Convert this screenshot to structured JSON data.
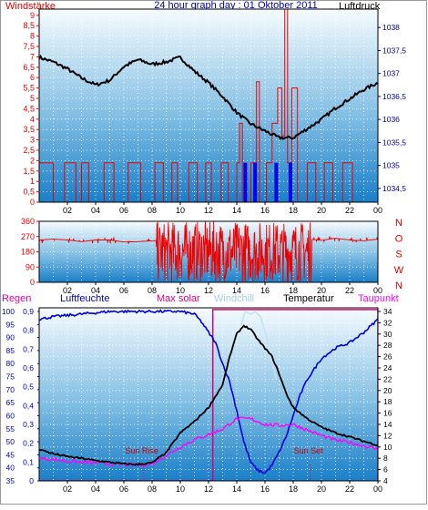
{
  "header": {
    "left": "Windstärke",
    "center": "24 hour graph day : 01 Oktober 2011",
    "right": "Luftdruck"
  },
  "panel3_header": {
    "regen": "Regen",
    "feuchte": "Luftfeuchte",
    "solar": "Max solar",
    "windchill": "Windchill",
    "temperatur": "Temperatur",
    "taupunkt": "Taupunkt"
  },
  "colors": {
    "wind": "#ee0000",
    "gust": "#0000ee",
    "pressure": "#000000",
    "humidity": "#0000dd",
    "temperature": "#000000",
    "dewpoint": "#ff00ff",
    "windchill": "#c0e4f4",
    "solar": "#dd0077",
    "axis_left": "#dd0000",
    "axis_right": "#000088",
    "grid": "#ffffff"
  },
  "chart_data": [
    {
      "type": "line",
      "name": "wind-pressure",
      "x_ticks": [
        "02",
        "04",
        "06",
        "08",
        "10",
        "12",
        "14",
        "16",
        "18",
        "20",
        "22",
        "00"
      ],
      "left_axis": {
        "label": "Windstärke",
        "ticks": [
          "0",
          "0,5",
          "1",
          "1,5",
          "2",
          "2,5",
          "3",
          "3,5",
          "4",
          "4,5",
          "5",
          "5,5",
          "6",
          "6,5",
          "7",
          "7,5",
          "8",
          "8,5",
          "9"
        ],
        "range": [
          0,
          9.3
        ]
      },
      "right_axis": {
        "label": "Luftdruck",
        "ticks": [
          "1034,5",
          "1035",
          "1035,5",
          "1036",
          "1036,5",
          "1037",
          "1037,5",
          "1038"
        ],
        "range": [
          1034.2,
          1038.4
        ]
      },
      "series": [
        {
          "name": "Windstärke",
          "points": [
            [
              0,
              1.9
            ],
            [
              1,
              0
            ],
            [
              1.8,
              1.9
            ],
            [
              2.6,
              0
            ],
            [
              3,
              1.9
            ],
            [
              3.5,
              0
            ],
            [
              4.6,
              1.9
            ],
            [
              5.3,
              0
            ],
            [
              6.3,
              1.9
            ],
            [
              7.2,
              0
            ],
            [
              8.2,
              1.9
            ],
            [
              8.8,
              0
            ],
            [
              9.4,
              1.9
            ],
            [
              9.8,
              0
            ],
            [
              10.6,
              1.9
            ],
            [
              11.2,
              0
            ],
            [
              11.8,
              1.9
            ],
            [
              12.2,
              0
            ],
            [
              12.9,
              1.9
            ],
            [
              13.4,
              0
            ],
            [
              14,
              1.9
            ],
            [
              14.2,
              3.8
            ],
            [
              14.4,
              0
            ],
            [
              15,
              1.9
            ],
            [
              15.4,
              5.8
            ],
            [
              15.6,
              0
            ],
            [
              16.1,
              1.9
            ],
            [
              16.5,
              3.8
            ],
            [
              16.9,
              5.5
            ],
            [
              17.2,
              3.2
            ],
            [
              17.4,
              9.3
            ],
            [
              17.6,
              1.9
            ],
            [
              17.9,
              5.5
            ],
            [
              18.3,
              0
            ],
            [
              19,
              1.9
            ],
            [
              19.6,
              0
            ],
            [
              20.2,
              1.9
            ],
            [
              20.8,
              0
            ],
            [
              21.5,
              1.9
            ],
            [
              22.2,
              0
            ],
            [
              23,
              0
            ],
            [
              24,
              0
            ]
          ]
        },
        {
          "name": "Windböen",
          "points": [
            [
              14.6,
              1.9
            ],
            [
              15.3,
              1.9
            ],
            [
              16.8,
              1.9
            ],
            [
              17.8,
              1.9
            ]
          ]
        },
        {
          "name": "Luftdruck",
          "points": [
            [
              0,
              1037.35
            ],
            [
              1,
              1037.25
            ],
            [
              2,
              1037.1
            ],
            [
              3,
              1036.9
            ],
            [
              4,
              1036.75
            ],
            [
              5,
              1036.85
            ],
            [
              6,
              1037.15
            ],
            [
              7,
              1037.3
            ],
            [
              8,
              1037.2
            ],
            [
              9,
              1037.25
            ],
            [
              10,
              1037.35
            ],
            [
              11,
              1037.05
            ],
            [
              12,
              1036.8
            ],
            [
              13,
              1036.5
            ],
            [
              14,
              1036.15
            ],
            [
              15,
              1035.9
            ],
            [
              16,
              1035.75
            ],
            [
              17,
              1035.6
            ],
            [
              18,
              1035.6
            ],
            [
              19,
              1035.8
            ],
            [
              20,
              1036.0
            ],
            [
              21,
              1036.25
            ],
            [
              22,
              1036.45
            ],
            [
              23,
              1036.65
            ],
            [
              24,
              1036.8
            ]
          ]
        }
      ]
    },
    {
      "type": "line",
      "name": "wind-direction",
      "x_ticks": [
        "02",
        "04",
        "06",
        "08",
        "10",
        "12",
        "14",
        "16",
        "18",
        "20",
        "22",
        "00"
      ],
      "left_axis": {
        "ticks": [
          "0",
          "90",
          "180",
          "270",
          "360"
        ],
        "range": [
          0,
          360
        ]
      },
      "right_axis": {
        "ticks": [
          "N",
          "W",
          "S",
          "O",
          "N"
        ]
      },
      "series": [
        {
          "name": "Windrichtung",
          "points": [
            [
              0,
              250
            ],
            [
              1,
              255
            ],
            [
              2,
              250
            ],
            [
              3,
              240
            ],
            [
              4,
              250
            ],
            [
              5,
              250
            ],
            [
              6,
              238
            ],
            [
              7,
              240
            ],
            [
              8,
              245
            ],
            [
              9,
              250
            ],
            [
              10,
              245
            ],
            [
              11,
              250
            ],
            [
              12,
              240
            ],
            [
              13,
              230
            ],
            [
              14,
              250
            ],
            [
              15,
              240
            ],
            [
              16,
              245
            ],
            [
              17,
              235
            ],
            [
              18,
              250
            ],
            [
              19,
              255
            ],
            [
              20,
              248
            ],
            [
              21,
              260
            ],
            [
              22,
              250
            ],
            [
              23,
              245
            ],
            [
              24,
              255
            ]
          ],
          "spread_from_hour": 8.3,
          "spread_to_hour": 19.3
        }
      ]
    },
    {
      "type": "line",
      "name": "humidity-temperature",
      "x_ticks": [
        "02",
        "04",
        "06",
        "08",
        "10",
        "12",
        "14",
        "16",
        "18",
        "20",
        "22",
        "00"
      ],
      "left_axis_1": {
        "label": "Regen",
        "ticks": [
          "0",
          "0,1",
          "0,2",
          "0,3",
          "0,4",
          "0,5",
          "0,6",
          "0,7",
          "0,8",
          "0,9"
        ]
      },
      "left_axis_2": {
        "label": "Luftfeuchte",
        "ticks": [
          "35",
          "40",
          "45",
          "50",
          "55",
          "60",
          "65",
          "70",
          "75",
          "80",
          "85",
          "90",
          "95",
          "100"
        ],
        "range": [
          35,
          100
        ]
      },
      "right_axis": {
        "label": "Temperatur",
        "ticks": [
          "4",
          "6",
          "8",
          "10",
          "12",
          "14",
          "16",
          "18",
          "20",
          "22",
          "24",
          "26",
          "28",
          "30",
          "32",
          "34"
        ],
        "range": [
          4,
          34
        ]
      },
      "annotations": [
        {
          "text": "Sun Rise",
          "hour": 7.4
        },
        {
          "text": "Sun Set",
          "hour": 19.2
        }
      ],
      "series": [
        {
          "name": "Luftfeuchte",
          "points": [
            [
              0,
              97
            ],
            [
              1,
              98
            ],
            [
              2,
              98.5
            ],
            [
              3,
              99
            ],
            [
              4,
              99.5
            ],
            [
              5,
              100
            ],
            [
              6,
              100
            ],
            [
              7,
              100
            ],
            [
              8,
              100
            ],
            [
              9,
              100
            ],
            [
              10,
              100
            ],
            [
              11,
              99
            ],
            [
              11.5,
              96
            ],
            [
              12,
              92
            ],
            [
              12.5,
              88
            ],
            [
              13,
              80
            ],
            [
              13.5,
              73
            ],
            [
              14,
              62
            ],
            [
              14.5,
              50
            ],
            [
              15,
              42
            ],
            [
              15.5,
              39
            ],
            [
              16,
              38
            ],
            [
              16.5,
              41
            ],
            [
              17,
              46
            ],
            [
              17.5,
              52
            ],
            [
              18,
              60
            ],
            [
              18.5,
              68
            ],
            [
              19,
              74
            ],
            [
              19.5,
              78
            ],
            [
              20,
              82
            ],
            [
              21,
              86
            ],
            [
              22,
              88
            ],
            [
              23,
              92
            ],
            [
              24,
              97
            ]
          ]
        },
        {
          "name": "Temperatur",
          "points": [
            [
              0,
              9.6
            ],
            [
              1,
              8.8
            ],
            [
              2,
              8.3
            ],
            [
              3,
              8.0
            ],
            [
              4,
              7.6
            ],
            [
              5,
              7.3
            ],
            [
              6,
              7.0
            ],
            [
              7,
              6.9
            ],
            [
              8,
              7.2
            ],
            [
              9,
              9.0
            ],
            [
              10,
              12.5
            ],
            [
              11,
              14.5
            ],
            [
              12,
              17.0
            ],
            [
              13,
              21.0
            ],
            [
              13.5,
              26.0
            ],
            [
              14,
              30.0
            ],
            [
              14.5,
              31.5
            ],
            [
              15,
              30.8
            ],
            [
              15.5,
              29.0
            ],
            [
              16,
              27.5
            ],
            [
              16.5,
              26.0
            ],
            [
              17,
              23.0
            ],
            [
              17.5,
              19.5
            ],
            [
              18,
              17.0
            ],
            [
              19,
              15.0
            ],
            [
              20,
              13.5
            ],
            [
              21,
              12.5
            ],
            [
              22,
              11.8
            ],
            [
              23,
              11.0
            ],
            [
              24,
              10.3
            ]
          ]
        },
        {
          "name": "Taupunkt",
          "points": [
            [
              0,
              8.0
            ],
            [
              1,
              7.8
            ],
            [
              2,
              7.5
            ],
            [
              3,
              7.3
            ],
            [
              4,
              7.2
            ],
            [
              5,
              7.0
            ],
            [
              6,
              6.9
            ],
            [
              7,
              6.8
            ],
            [
              8,
              7.0
            ],
            [
              9,
              8.5
            ],
            [
              10,
              10.0
            ],
            [
              11,
              11.3
            ],
            [
              12,
              12.2
            ],
            [
              13,
              13.2
            ],
            [
              14,
              15.0
            ],
            [
              15,
              15.0
            ],
            [
              16,
              14.0
            ],
            [
              17,
              13.8
            ],
            [
              18,
              14.0
            ],
            [
              19,
              13.0
            ],
            [
              20,
              12.0
            ],
            [
              21,
              11.2
            ],
            [
              22,
              10.8
            ],
            [
              23,
              10.2
            ],
            [
              24,
              9.6
            ]
          ]
        },
        {
          "name": "Windchill",
          "points": [
            [
              14.3,
              31.5
            ],
            [
              14.6,
              34
            ],
            [
              15.0,
              33.5
            ],
            [
              15.3,
              34
            ],
            [
              15.7,
              33.0
            ],
            [
              16.0,
              30.5
            ],
            [
              16.4,
              26.5
            ],
            [
              16.8,
              22.0
            ]
          ]
        },
        {
          "name": "Max solar",
          "points": [
            [
              0,
              0
            ],
            [
              12.3,
              0
            ],
            [
              12.3,
              0.91
            ],
            [
              24,
              0.91
            ],
            [
              24,
              0
            ]
          ]
        }
      ]
    }
  ]
}
